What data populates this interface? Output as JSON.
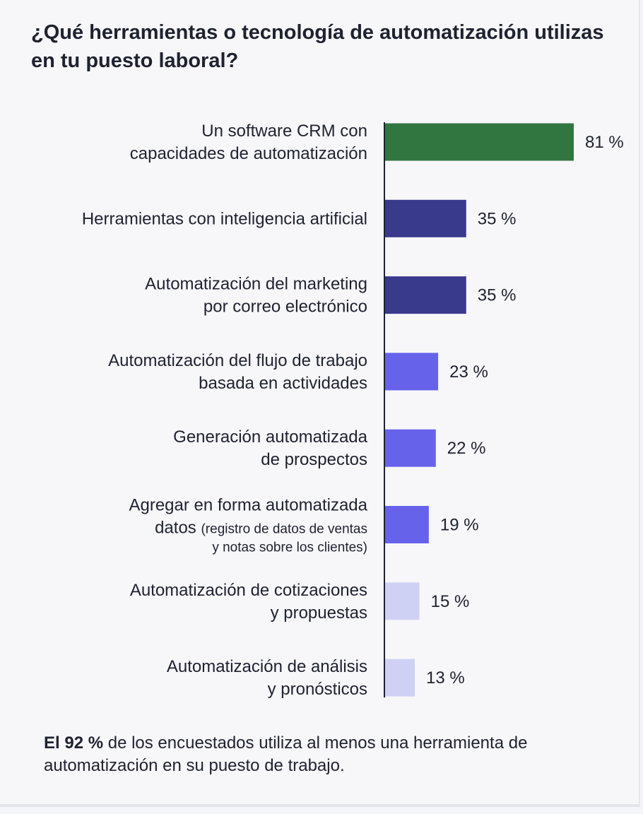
{
  "title": "¿Qué herramientas o tecnología de automatización utilizas en tu puesto laboral?",
  "chart_data": {
    "type": "bar",
    "orientation": "horizontal",
    "title": "¿Qué herramientas o tecnología de automatización utilizas en tu puesto laboral?",
    "categories": [
      [
        "Un software CRM con",
        "capacidades de automatización"
      ],
      [
        "Herramientas con inteligencia artificial"
      ],
      [
        "Automatización del marketing",
        "por correo electrónico"
      ],
      [
        "Automatización del flujo de trabajo",
        "basada en actividades"
      ],
      [
        "Generación automatizada",
        "de prospectos"
      ],
      [
        "Agregar en forma automatizada",
        "datos",
        "(registro de datos de ventas",
        "y notas sobre los clientes)"
      ],
      [
        "Automatización de cotizaciones",
        "y propuestas"
      ],
      [
        "Automatización de análisis",
        "y pronósticos"
      ]
    ],
    "values": [
      81,
      35,
      35,
      23,
      22,
      19,
      15,
      13
    ],
    "value_labels": [
      "81 %",
      "35 %",
      "35 %",
      "23 %",
      "22 %",
      "19 %",
      "15 %",
      "13 %"
    ],
    "colors": [
      "#317541",
      "#3a3a8c",
      "#3a3a8c",
      "#6762ea",
      "#6762ea",
      "#6762ea",
      "#cfd1f4",
      "#cfd1f4"
    ],
    "xlim": [
      0,
      81
    ],
    "grid": false,
    "legend": "none"
  },
  "footnote": {
    "bold": "El 92 %",
    "text": " de los encuestados utiliza al menos una herramienta de automatización en su puesto de trabajo."
  }
}
